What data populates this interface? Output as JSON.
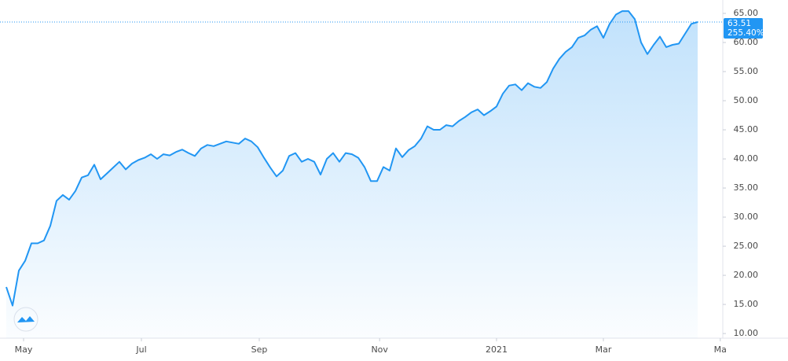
{
  "chart_data": {
    "type": "area",
    "values": [
      18,
      14.8,
      20.8,
      22.5,
      25.5,
      25.5,
      26,
      28.5,
      32.8,
      33.8,
      33,
      34.5,
      36.8,
      37.2,
      39,
      36.5,
      37.5,
      38.5,
      39.5,
      38.2,
      39.2,
      39.8,
      40.2,
      40.8,
      40,
      40.8,
      40.6,
      41.2,
      41.6,
      41,
      40.5,
      41.8,
      42.4,
      42.2,
      42.6,
      43,
      42.8,
      42.6,
      43.5,
      43,
      42,
      40.2,
      38.5,
      37,
      38,
      40.5,
      41,
      39.5,
      40,
      39.5,
      37.3,
      40,
      41,
      39.5,
      41,
      40.8,
      40.2,
      38.6,
      36.2,
      36.2,
      38.6,
      38,
      41.8,
      40.3,
      41.5,
      42.2,
      43.5,
      45.6,
      45,
      45,
      45.8,
      45.6,
      46.5,
      47.2,
      48,
      48.5,
      47.5,
      48.2,
      49,
      51.2,
      52.6,
      52.8,
      51.8,
      53,
      52.4,
      52.2,
      53.2,
      55.5,
      57.2,
      58.4,
      59.2,
      60.8,
      61.2,
      62.2,
      62.8,
      60.8,
      63.2,
      64.8,
      65.4,
      65.4,
      64,
      60,
      58,
      59.6,
      61,
      59.2,
      59.6,
      59.8,
      61.5,
      63.2,
      63.51
    ],
    "color": "#2196f3",
    "xlim": [
      0,
      114
    ],
    "xticks": [
      {
        "value": 2.75,
        "label": "May"
      },
      {
        "value": 21.5,
        "label": "Jul"
      },
      {
        "value": 40.25,
        "label": "Sep"
      },
      {
        "value": 59.4,
        "label": "Nov"
      },
      {
        "value": 78,
        "label": "2021"
      },
      {
        "value": 95,
        "label": "Mar"
      },
      {
        "value": 113.6,
        "label": "Ma"
      }
    ],
    "ylim": [
      9.2,
      67.3
    ],
    "yticks": [
      {
        "value": 10,
        "label": "10.00"
      },
      {
        "value": 15,
        "label": "15.00"
      },
      {
        "value": 20,
        "label": "20.00"
      },
      {
        "value": 25,
        "label": "25.00"
      },
      {
        "value": 30,
        "label": "30.00"
      },
      {
        "value": 35,
        "label": "35.00"
      },
      {
        "value": 40,
        "label": "40.00"
      },
      {
        "value": 45,
        "label": "45.00"
      },
      {
        "value": 50,
        "label": "50.00"
      },
      {
        "value": 55,
        "label": "55.00"
      },
      {
        "value": 60,
        "label": "60.00"
      },
      {
        "value": 65,
        "label": "65.00"
      }
    ],
    "last_value_label": "63.51",
    "change_label": "255.40%"
  }
}
